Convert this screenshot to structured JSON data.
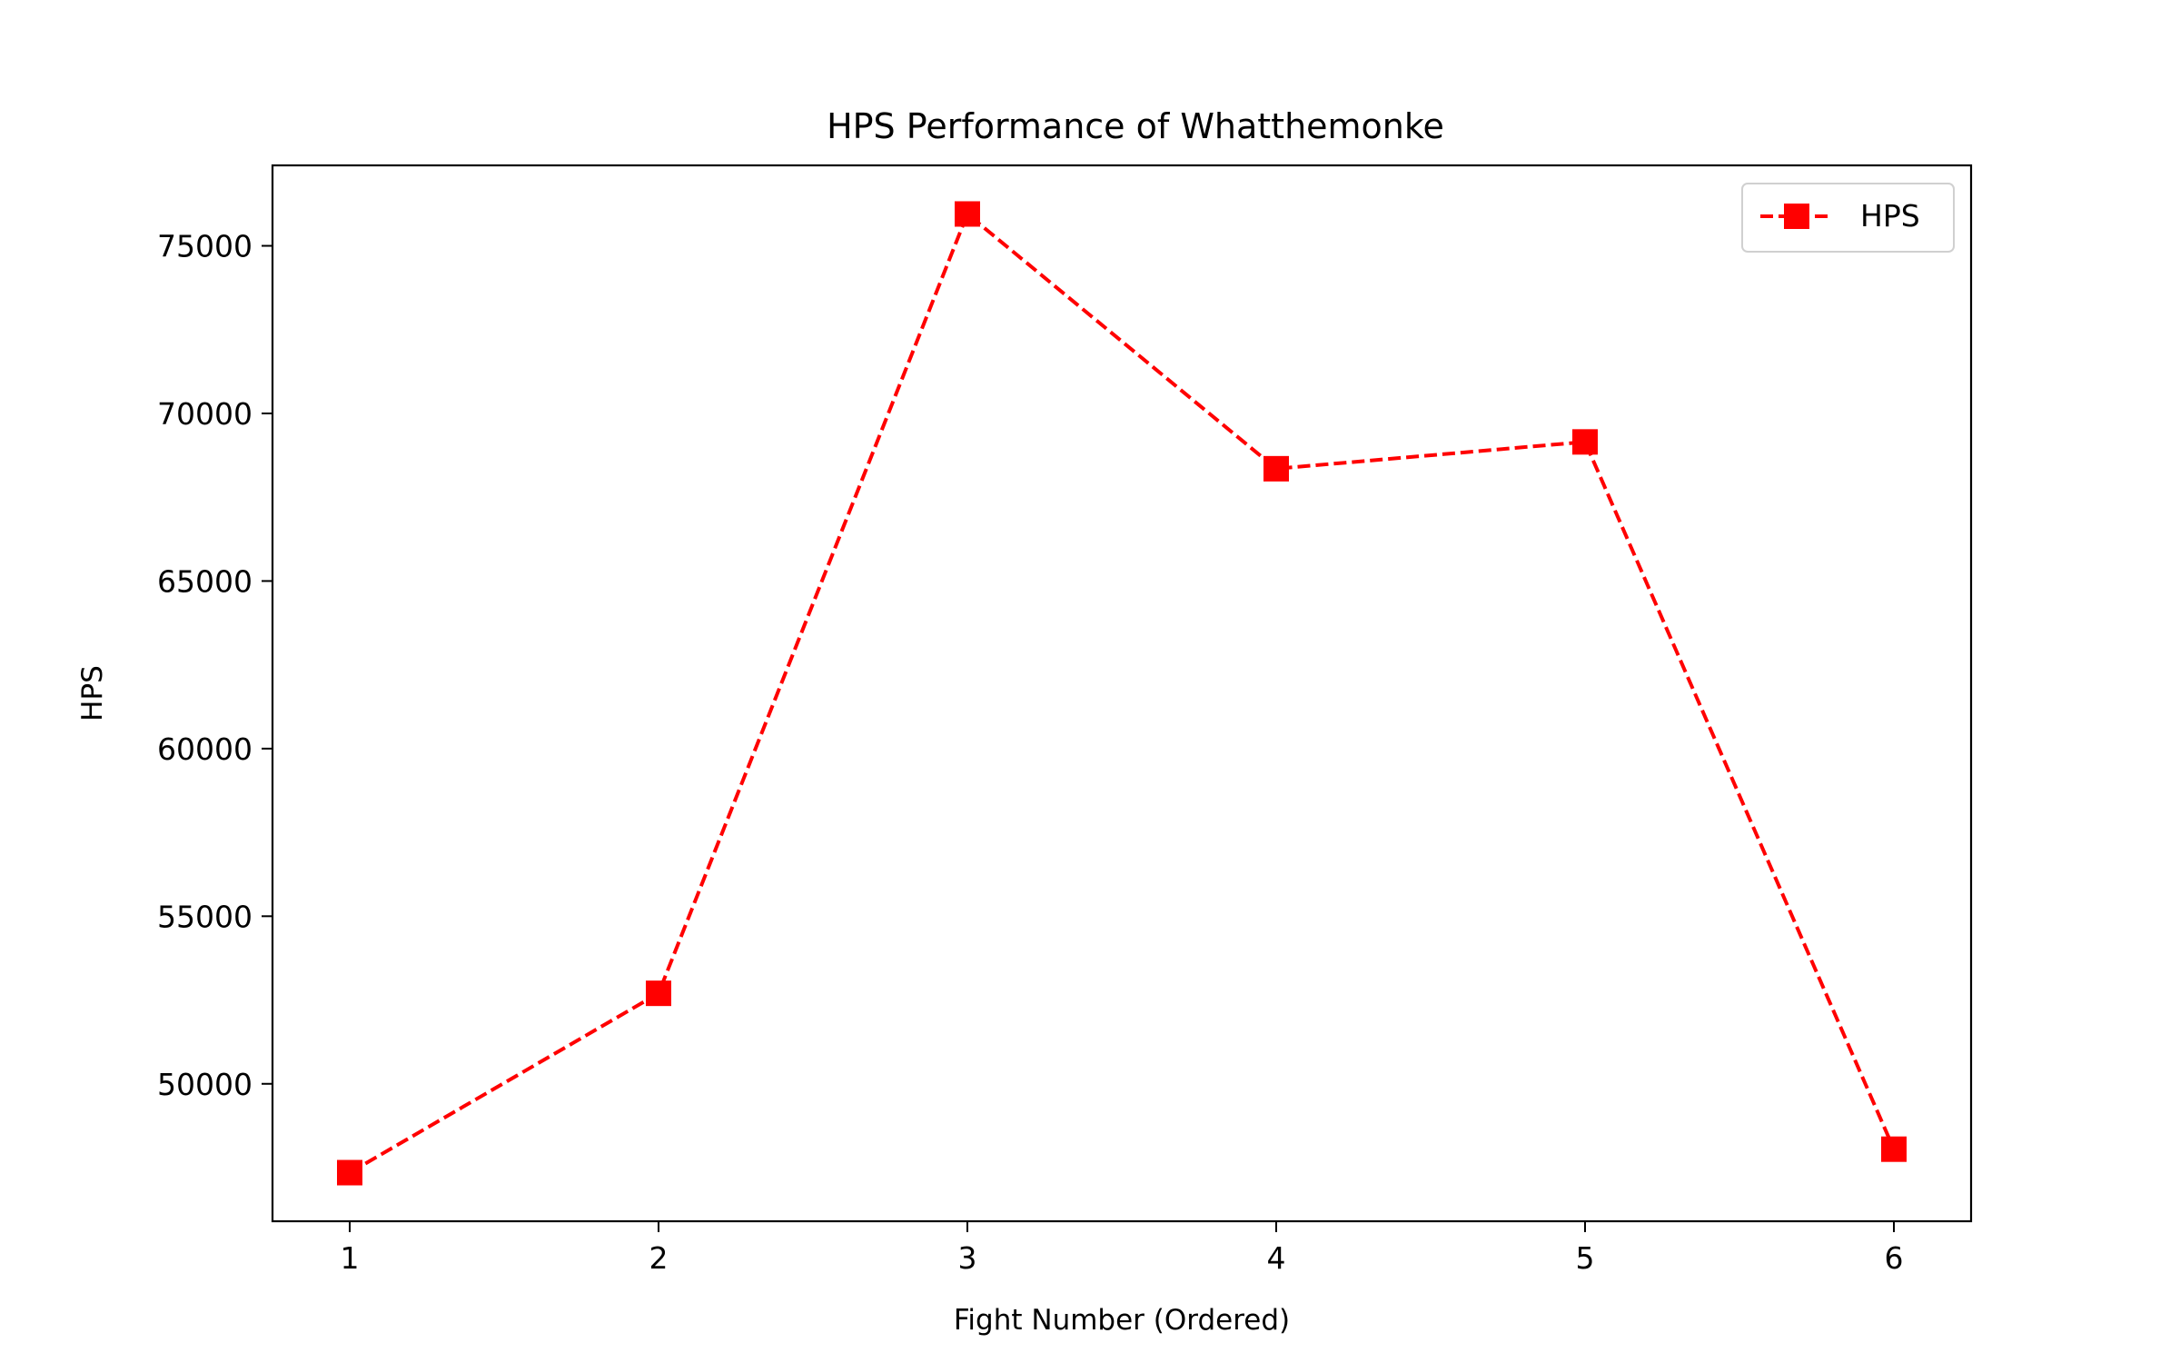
{
  "chart_data": {
    "type": "line",
    "title": "HPS Performance of Whatthemonke",
    "xlabel": "Fight Number (Ordered)",
    "ylabel": "HPS",
    "x": [
      1,
      2,
      3,
      4,
      5,
      6
    ],
    "xticks": [
      1,
      2,
      3,
      4,
      5,
      6
    ],
    "xlim": [
      0.75,
      6.25
    ],
    "yticks": [
      50000,
      55000,
      60000,
      65000,
      70000,
      75000
    ],
    "ylim": [
      45900,
      77400
    ],
    "grid": false,
    "legend_position": "upper right",
    "series": [
      {
        "name": "HPS",
        "color": "#ff0000",
        "line_style": "dashed",
        "marker": "square",
        "values": [
          47350,
          52700,
          75950,
          68350,
          69150,
          48050
        ]
      }
    ]
  }
}
